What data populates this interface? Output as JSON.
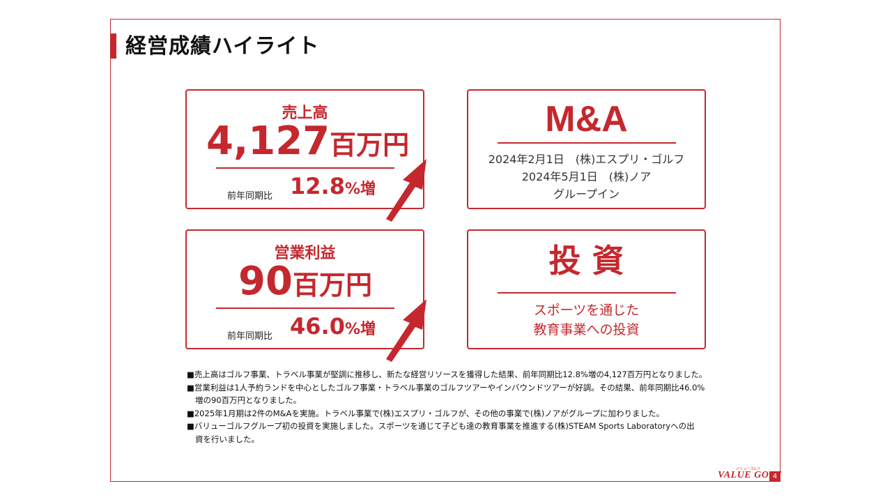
{
  "page_title": "経営成績ハイライト",
  "sales": {
    "label": "売上高",
    "value": "4,127",
    "unit": "百万円",
    "compare_label": "前年同期比",
    "growth_value": "12.8",
    "growth_unit": "%増"
  },
  "ma": {
    "heading": "M&A",
    "lines": [
      "2024年2月1日　(株)エスプリ・ゴルフ",
      "2024年5月1日　(株)ノア",
      "グループイン"
    ]
  },
  "profit": {
    "label": "営業利益",
    "value": "90",
    "unit": "百万円",
    "compare_label": "前年同期比",
    "growth_value": "46.0",
    "growth_unit": "%増"
  },
  "investment": {
    "heading": "投 資",
    "lines": [
      "スポーツを通じた",
      "教育事業への投資"
    ]
  },
  "notes": [
    {
      "text": "■売上高はゴルフ事業、トラベル事業が堅調に推移し、新たな経営リソースを獲得した結果、前年同期比12.8%増の4,127百万円となりました。",
      "cont": ""
    },
    {
      "text": "■営業利益は1人予約ランドを中心としたゴルフ事業・トラベル事業のゴルフツアーやインバウンドツアーが好調。その結果、前年同期比46.0%",
      "cont": "増の90百万円となりました。"
    },
    {
      "text": "■2025年1月期は2件のM&Aを実施。トラベル事業で(株)エスプリ・ゴルフが、その他の事業で(株)ノアがグループに加わりました。",
      "cont": ""
    },
    {
      "text": "■バリューゴルフグループ初の投資を実施しました。スポーツを通じて子ども達の教育事業を推進する(株)STEAM Sports Laboratoryへの出",
      "cont": "資を行いました。"
    }
  ],
  "footer": {
    "logo": "VALUE GOLF",
    "logo_sub": "バリューゴルフ",
    "page_number": "4"
  },
  "colors": {
    "accent": "#c4282e"
  }
}
